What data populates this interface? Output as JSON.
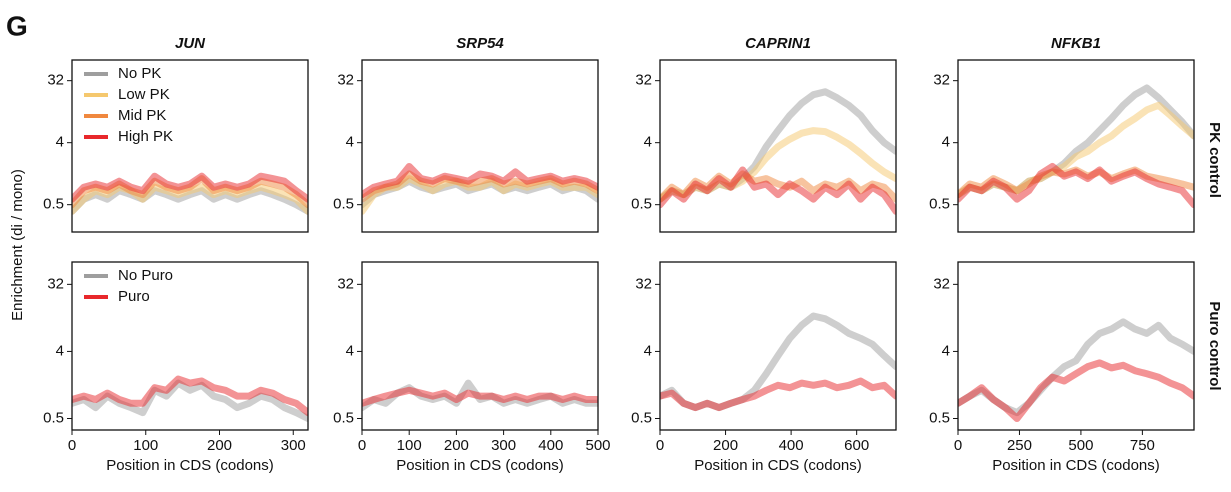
{
  "figure_label": "G",
  "ylabel": "Enrichment (di / mono)",
  "row_labels": [
    "PK control",
    "Puro control"
  ],
  "chart_data": [
    {
      "type": "line",
      "title": "JUN",
      "log_scale": true,
      "legend": "upper left",
      "xlim": [
        0,
        320
      ],
      "ylim": [
        0.2,
        64
      ],
      "yticks": [
        0.5,
        4,
        32
      ],
      "x": [
        0,
        16,
        32,
        48,
        64,
        80,
        96,
        112,
        128,
        144,
        160,
        176,
        192,
        208,
        224,
        240,
        256,
        272,
        288,
        304,
        320
      ],
      "series": [
        {
          "name": "No PK",
          "color": "#9e9e9e",
          "values": [
            0.4,
            0.6,
            0.7,
            0.6,
            0.8,
            0.7,
            0.6,
            0.8,
            0.7,
            0.6,
            0.7,
            0.8,
            0.6,
            0.7,
            0.6,
            0.7,
            0.8,
            0.7,
            0.6,
            0.5,
            0.4
          ]
        },
        {
          "name": "Low PK",
          "color": "#f5c86e",
          "values": [
            0.4,
            0.6,
            0.8,
            0.7,
            0.9,
            0.8,
            0.6,
            0.9,
            0.8,
            0.7,
            0.8,
            0.9,
            0.7,
            0.8,
            0.7,
            0.8,
            0.9,
            0.8,
            0.7,
            0.6,
            0.4
          ]
        },
        {
          "name": "Mid PK",
          "color": "#f0883e",
          "values": [
            0.5,
            0.8,
            0.9,
            0.8,
            1.0,
            0.8,
            0.7,
            1.1,
            0.9,
            0.8,
            0.9,
            1.2,
            0.8,
            0.9,
            0.8,
            0.9,
            1.1,
            1.0,
            0.9,
            0.7,
            0.5
          ]
        },
        {
          "name": "High PK",
          "color": "#e8282b",
          "values": [
            0.6,
            0.9,
            1.0,
            0.9,
            1.1,
            0.9,
            0.8,
            1.3,
            1.0,
            0.9,
            1.0,
            1.3,
            0.9,
            1.0,
            0.9,
            1.0,
            1.3,
            1.2,
            1.1,
            0.8,
            0.6
          ]
        }
      ]
    },
    {
      "type": "line",
      "title": "SRP54",
      "log_scale": true,
      "xlim": [
        0,
        500
      ],
      "ylim": [
        0.2,
        64
      ],
      "yticks": [
        0.5,
        4,
        32
      ],
      "x": [
        0,
        25,
        50,
        75,
        100,
        125,
        150,
        175,
        200,
        225,
        250,
        275,
        300,
        325,
        350,
        375,
        400,
        425,
        450,
        475,
        500
      ],
      "series": [
        {
          "color": "#9e9e9e",
          "values": [
            0.5,
            0.7,
            0.8,
            0.9,
            1.1,
            0.9,
            0.8,
            0.9,
            1.0,
            0.8,
            0.9,
            1.0,
            0.8,
            0.9,
            0.8,
            0.9,
            1.0,
            0.8,
            0.9,
            0.8,
            0.6
          ]
        },
        {
          "color": "#f5c86e",
          "values": [
            0.4,
            0.7,
            0.9,
            0.9,
            1.2,
            1.0,
            0.8,
            1.0,
            1.1,
            0.9,
            0.9,
            1.1,
            0.8,
            1.0,
            0.9,
            1.0,
            1.1,
            0.9,
            0.9,
            0.9,
            0.7
          ]
        },
        {
          "color": "#f0883e",
          "values": [
            0.6,
            0.8,
            0.9,
            1.0,
            1.4,
            1.1,
            1.0,
            1.2,
            1.1,
            1.0,
            1.1,
            1.2,
            1.0,
            1.1,
            1.0,
            1.1,
            1.2,
            1.0,
            1.1,
            1.0,
            0.8
          ]
        },
        {
          "color": "#e8282b",
          "values": [
            0.7,
            0.9,
            1.0,
            1.1,
            1.8,
            1.2,
            1.1,
            1.3,
            1.2,
            1.1,
            1.4,
            1.3,
            1.1,
            1.5,
            1.1,
            1.2,
            1.3,
            1.1,
            1.2,
            1.1,
            0.9
          ]
        }
      ]
    },
    {
      "type": "line",
      "title": "CAPRIN1",
      "log_scale": true,
      "xlim": [
        0,
        720
      ],
      "ylim": [
        0.2,
        64
      ],
      "yticks": [
        0.5,
        4,
        32
      ],
      "x": [
        0,
        36,
        72,
        108,
        144,
        180,
        216,
        252,
        288,
        324,
        360,
        396,
        432,
        468,
        504,
        540,
        576,
        612,
        648,
        684,
        720
      ],
      "series": [
        {
          "color": "#9e9e9e",
          "values": [
            0.6,
            0.8,
            0.7,
            0.9,
            0.8,
            1.0,
            0.9,
            1.2,
            1.8,
            3.5,
            6,
            10,
            15,
            20,
            22,
            18,
            14,
            10,
            6,
            4,
            3
          ]
        },
        {
          "color": "#f5c86e",
          "values": [
            0.6,
            0.8,
            0.7,
            0.9,
            0.8,
            1.0,
            0.9,
            1.1,
            1.5,
            2.4,
            3.5,
            4.5,
            5.5,
            6,
            5.8,
            4.8,
            3.8,
            2.8,
            2,
            1.5,
            1.2
          ]
        },
        {
          "color": "#f0883e",
          "values": [
            0.6,
            0.9,
            0.7,
            1.1,
            0.9,
            1.3,
            1.0,
            1.4,
            1.1,
            1.2,
            1.0,
            0.9,
            1.1,
            0.8,
            1.0,
            0.9,
            1.1,
            0.8,
            1.0,
            0.9,
            0.6
          ]
        },
        {
          "color": "#e8282b",
          "values": [
            0.5,
            0.8,
            0.6,
            1.0,
            0.8,
            1.2,
            0.9,
            1.6,
            0.9,
            1.0,
            0.7,
            1.0,
            0.8,
            0.6,
            0.9,
            0.7,
            1.0,
            0.6,
            0.9,
            0.7,
            0.4
          ]
        }
      ]
    },
    {
      "type": "line",
      "title": "NFKB1",
      "log_scale": true,
      "xlim": [
        0,
        960
      ],
      "ylim": [
        0.2,
        64
      ],
      "yticks": [
        0.5,
        4,
        32
      ],
      "x": [
        0,
        48,
        96,
        144,
        192,
        240,
        288,
        336,
        384,
        432,
        480,
        528,
        576,
        624,
        672,
        720,
        768,
        816,
        864,
        912,
        960
      ],
      "series": [
        {
          "color": "#9e9e9e",
          "values": [
            0.7,
            0.9,
            0.8,
            1.0,
            0.9,
            0.8,
            1.1,
            1.2,
            1.5,
            2,
            3,
            4,
            6,
            9,
            14,
            20,
            25,
            18,
            12,
            8,
            5
          ]
        },
        {
          "color": "#f5c86e",
          "values": [
            0.7,
            0.9,
            0.8,
            1.0,
            0.9,
            0.8,
            1.1,
            1.2,
            1.5,
            1.8,
            2.5,
            3,
            4,
            5,
            7,
            9,
            12,
            14,
            10,
            7,
            5
          ]
        },
        {
          "color": "#f0883e",
          "values": [
            0.7,
            1.0,
            0.9,
            1.2,
            1.0,
            0.8,
            1.0,
            1.3,
            1.5,
            1.4,
            1.6,
            1.3,
            1.5,
            1.2,
            1.4,
            1.6,
            1.3,
            1.2,
            1.1,
            1.0,
            0.9
          ]
        },
        {
          "color": "#e8282b",
          "values": [
            0.6,
            0.9,
            0.8,
            1.1,
            0.9,
            0.6,
            0.8,
            1.4,
            1.8,
            1.3,
            1.5,
            1.2,
            1.6,
            1.1,
            1.3,
            1.5,
            1.2,
            1.0,
            0.9,
            0.8,
            0.5
          ]
        }
      ]
    },
    {
      "type": "line",
      "xlabel": "Position in CDS (codons)",
      "log_scale": true,
      "legend": "upper left",
      "xlim": [
        0,
        320
      ],
      "xticks": [
        0,
        100,
        200,
        300
      ],
      "ylim": [
        0.35,
        64
      ],
      "yticks": [
        0.5,
        4,
        32
      ],
      "x": [
        0,
        16,
        32,
        48,
        64,
        80,
        96,
        112,
        128,
        144,
        160,
        176,
        192,
        208,
        224,
        240,
        256,
        272,
        288,
        304,
        320
      ],
      "series": [
        {
          "name": "No Puro",
          "color": "#9e9e9e",
          "values": [
            0.8,
            0.9,
            0.7,
            1.0,
            0.8,
            0.7,
            0.6,
            1.2,
            1.0,
            1.5,
            1.2,
            1.4,
            1.0,
            0.9,
            0.7,
            0.8,
            1.0,
            0.9,
            0.7,
            0.6,
            0.5
          ]
        },
        {
          "name": "Puro",
          "color": "#e8282b",
          "values": [
            0.9,
            1.0,
            0.9,
            1.1,
            0.9,
            0.8,
            0.8,
            1.3,
            1.2,
            1.7,
            1.5,
            1.6,
            1.3,
            1.2,
            1.0,
            1.0,
            1.2,
            1.1,
            0.9,
            0.8,
            0.6
          ]
        }
      ]
    },
    {
      "type": "line",
      "xlabel": "Position in CDS (codons)",
      "log_scale": true,
      "xlim": [
        0,
        500
      ],
      "xticks": [
        0,
        100,
        200,
        300,
        400,
        500
      ],
      "ylim": [
        0.35,
        64
      ],
      "yticks": [
        0.5,
        4,
        32
      ],
      "x": [
        0,
        25,
        50,
        75,
        100,
        125,
        150,
        175,
        200,
        225,
        250,
        275,
        300,
        325,
        350,
        375,
        400,
        425,
        450,
        475,
        500
      ],
      "series": [
        {
          "color": "#9e9e9e",
          "values": [
            0.7,
            0.9,
            0.8,
            1.1,
            1.3,
            1.0,
            0.9,
            1.0,
            0.8,
            1.5,
            0.9,
            1.0,
            0.8,
            0.9,
            0.8,
            0.9,
            1.0,
            0.8,
            0.9,
            0.8,
            0.8
          ]
        },
        {
          "color": "#e8282b",
          "values": [
            0.8,
            0.9,
            1.0,
            1.1,
            1.2,
            1.1,
            1.0,
            1.1,
            0.9,
            1.1,
            1.0,
            1.0,
            0.9,
            1.0,
            0.9,
            1.0,
            1.0,
            0.9,
            1.0,
            0.9,
            0.9
          ]
        }
      ]
    },
    {
      "type": "line",
      "xlabel": "Position in CDS (codons)",
      "log_scale": true,
      "xlim": [
        0,
        720
      ],
      "xticks": [
        0,
        200,
        400,
        600
      ],
      "ylim": [
        0.35,
        64
      ],
      "yticks": [
        0.5,
        4,
        32
      ],
      "x": [
        0,
        36,
        72,
        108,
        144,
        180,
        216,
        252,
        288,
        324,
        360,
        396,
        432,
        468,
        504,
        540,
        576,
        612,
        648,
        684,
        720
      ],
      "series": [
        {
          "color": "#9e9e9e",
          "values": [
            1.0,
            1.2,
            0.8,
            0.7,
            0.8,
            0.7,
            0.8,
            0.9,
            1.2,
            2,
            3.5,
            6,
            9,
            12,
            11,
            9,
            7,
            6,
            5,
            3.5,
            2.5
          ]
        },
        {
          "color": "#e8282b",
          "values": [
            1.0,
            1.1,
            0.8,
            0.7,
            0.8,
            0.7,
            0.8,
            0.9,
            1.0,
            1.2,
            1.4,
            1.3,
            1.5,
            1.4,
            1.5,
            1.3,
            1.4,
            1.6,
            1.3,
            1.4,
            1.0
          ]
        }
      ]
    },
    {
      "type": "line",
      "xlabel": "Position in CDS (codons)",
      "log_scale": true,
      "xlim": [
        0,
        960
      ],
      "xticks": [
        0,
        250,
        500,
        750
      ],
      "ylim": [
        0.35,
        64
      ],
      "yticks": [
        0.5,
        4,
        32
      ],
      "x": [
        0,
        48,
        96,
        144,
        192,
        240,
        288,
        336,
        384,
        432,
        480,
        528,
        576,
        624,
        672,
        720,
        768,
        816,
        864,
        912,
        960
      ],
      "series": [
        {
          "color": "#9e9e9e",
          "values": [
            0.8,
            1.0,
            1.2,
            0.9,
            0.7,
            0.6,
            0.8,
            1.2,
            1.8,
            2.5,
            3,
            5,
            7,
            8,
            10,
            8,
            7,
            9,
            6,
            5,
            4
          ]
        },
        {
          "color": "#e8282b",
          "values": [
            0.8,
            1.0,
            1.3,
            0.9,
            0.7,
            0.5,
            0.8,
            1.3,
            1.8,
            1.6,
            2,
            2.5,
            2.8,
            2.4,
            2.6,
            2.2,
            2.0,
            1.8,
            1.5,
            1.3,
            1.0
          ]
        }
      ]
    }
  ]
}
